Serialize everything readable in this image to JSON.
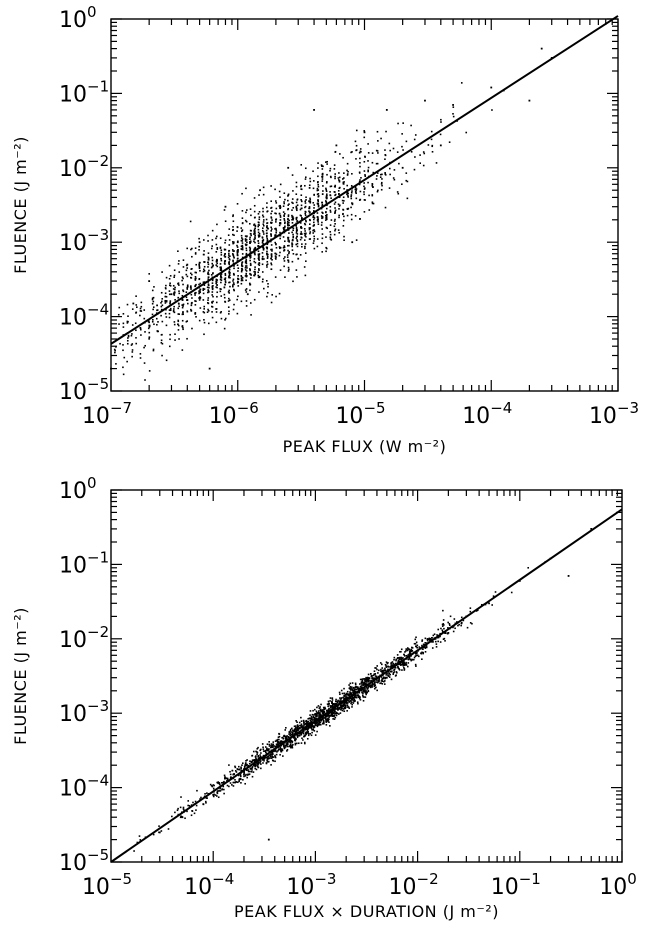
{
  "chart_data": [
    {
      "type": "scatter",
      "xscale": "log",
      "yscale": "log",
      "xlim": [
        1e-07,
        0.001
      ],
      "ylim": [
        1e-05,
        1
      ],
      "xlabel": "PEAK FLUX (W m⁻²)",
      "ylabel": "FLUENCE (J m⁻²)",
      "x_ticks": [
        {
          "base": "10",
          "exp": "−7",
          "value": 1e-07
        },
        {
          "base": "10",
          "exp": "−6",
          "value": 1e-06
        },
        {
          "base": "10",
          "exp": "−5",
          "value": 1e-05
        },
        {
          "base": "10",
          "exp": "−4",
          "value": 0.0001
        },
        {
          "base": "10",
          "exp": "−3",
          "value": 0.001
        }
      ],
      "y_ticks": [
        {
          "base": "10",
          "exp": "−5",
          "value": 1e-05
        },
        {
          "base": "10",
          "exp": "−4",
          "value": 0.0001
        },
        {
          "base": "10",
          "exp": "−3",
          "value": 0.001
        },
        {
          "base": "10",
          "exp": "−2",
          "value": 0.01
        },
        {
          "base": "10",
          "exp": "−1",
          "value": 0.1
        },
        {
          "base": "10",
          "exp": "0",
          "value": 1
        }
      ],
      "fit_line": {
        "x": [
          1e-07,
          0.001
        ],
        "y": [
          4.3e-05,
          1.1
        ]
      },
      "scatter_description": "dense cloud of ~2000 points scattered about fit line, log10 spread ~0.4 dex, concentrated between 1e-6 and 1e-5 W m^-2",
      "points": [
        [
          1e-07,
          2e-05
        ],
        [
          1.5e-07,
          0.00015
        ],
        [
          2e-07,
          0.0003
        ],
        [
          3e-07,
          0.0002
        ],
        [
          4e-07,
          0.0005
        ],
        [
          5e-07,
          0.001
        ],
        [
          6e-07,
          2e-05
        ],
        [
          8e-07,
          0.003
        ],
        [
          1e-06,
          0.001
        ],
        [
          1.2e-06,
          0.0002
        ],
        [
          1.5e-06,
          0.005
        ],
        [
          2e-06,
          0.002
        ],
        [
          2.5e-06,
          0.01
        ],
        [
          3e-06,
          0.0006
        ],
        [
          4e-06,
          0.06
        ],
        [
          5e-06,
          0.004
        ],
        [
          6e-06,
          0.02
        ],
        [
          8e-06,
          0.001
        ],
        [
          1e-05,
          0.03
        ],
        [
          1.5e-05,
          0.06
        ],
        [
          2e-05,
          0.01
        ],
        [
          3e-05,
          0.08
        ],
        [
          4e-05,
          0.02
        ],
        [
          5e-05,
          0.07
        ],
        [
          0.0001,
          0.12
        ],
        [
          0.0002,
          0.08
        ],
        [
          0.00025,
          0.4
        ],
        [
          0.0003,
          0.3
        ]
      ]
    },
    {
      "type": "scatter",
      "xscale": "log",
      "yscale": "log",
      "xlim": [
        1e-05,
        1
      ],
      "ylim": [
        1e-05,
        1
      ],
      "xlabel": "PEAK FLUX × DURATION (J m⁻²)",
      "ylabel": "FLUENCE (J m⁻²)",
      "x_ticks": [
        {
          "base": "10",
          "exp": "−5",
          "value": 1e-05
        },
        {
          "base": "10",
          "exp": "−4",
          "value": 0.0001
        },
        {
          "base": "10",
          "exp": "−3",
          "value": 0.001
        },
        {
          "base": "10",
          "exp": "−2",
          "value": 0.01
        },
        {
          "base": "10",
          "exp": "−1",
          "value": 0.1
        },
        {
          "base": "10",
          "exp": "0",
          "value": 1
        }
      ],
      "y_ticks": [
        {
          "base": "10",
          "exp": "−5",
          "value": 1e-05
        },
        {
          "base": "10",
          "exp": "−4",
          "value": 0.0001
        },
        {
          "base": "10",
          "exp": "−3",
          "value": 0.001
        },
        {
          "base": "10",
          "exp": "−2",
          "value": 0.01
        },
        {
          "base": "10",
          "exp": "−1",
          "value": 0.1
        },
        {
          "base": "10",
          "exp": "0",
          "value": 1
        }
      ],
      "fit_line": {
        "x": [
          1e-05,
          1
        ],
        "y": [
          1e-05,
          0.55
        ]
      },
      "scatter_description": "tight band of ~2000 points along fit line, log10 spread ~0.08 dex, from ~3e-5 to ~0.5 J m^-2",
      "points": [
        [
          3e-05,
          2.5e-05
        ],
        [
          5e-05,
          4e-05
        ],
        [
          8e-05,
          6e-05
        ],
        [
          0.0001,
          8e-05
        ],
        [
          0.0002,
          0.00015
        ],
        [
          0.0003,
          0.00025
        ],
        [
          0.00035,
          2e-05
        ],
        [
          0.0005,
          0.0004
        ],
        [
          0.0007,
          0.0005
        ],
        [
          0.001,
          0.0007
        ],
        [
          0.0015,
          0.001
        ],
        [
          0.002,
          0.0015
        ],
        [
          0.003,
          0.002
        ],
        [
          0.005,
          0.003
        ],
        [
          0.007,
          0.0045
        ],
        [
          0.01,
          0.006
        ],
        [
          0.02,
          0.012
        ],
        [
          0.03,
          0.02
        ],
        [
          0.05,
          0.03
        ],
        [
          0.1,
          0.06
        ],
        [
          0.2,
          0.12
        ],
        [
          0.3,
          0.07
        ],
        [
          0.5,
          0.3
        ]
      ]
    }
  ]
}
